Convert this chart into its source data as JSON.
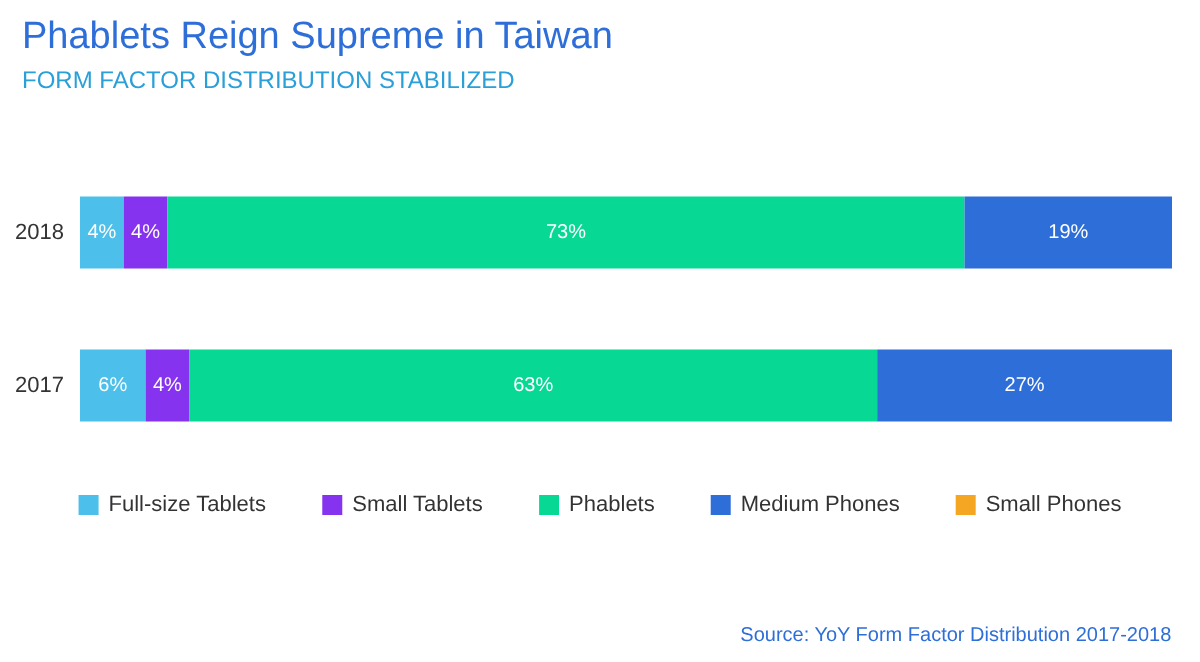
{
  "chart_data": {
    "type": "bar",
    "orientation": "horizontal",
    "stacked": true,
    "title": "Phablets Reign Supreme in Taiwan",
    "subtitle": "FORM FACTOR DISTRIBUTION STABILIZED",
    "categories": [
      "2018",
      "2017"
    ],
    "series": [
      {
        "name": "Full-size Tablets",
        "color": "#4cbfea",
        "values": [
          4,
          6
        ],
        "value_labels": [
          "4%",
          "6%"
        ]
      },
      {
        "name": "Small Tablets",
        "color": "#8533ee",
        "values": [
          4,
          4
        ],
        "value_labels": [
          "4%",
          "4%"
        ]
      },
      {
        "name": "Phablets",
        "color": "#07d893",
        "values": [
          73,
          63
        ],
        "value_labels": [
          "73%",
          "63%"
        ]
      },
      {
        "name": "Medium Phones",
        "color": "#2e6ed8",
        "values": [
          19,
          27
        ],
        "value_labels": [
          "19%",
          "27%"
        ]
      },
      {
        "name": "Small Phones",
        "color": "#f5a623",
        "values": [
          null,
          null
        ],
        "value_labels": [
          null,
          null
        ]
      }
    ],
    "legend": "bottom",
    "annotations": [
      "Source: YoY Form Factor Distribution 2017-2018"
    ]
  }
}
